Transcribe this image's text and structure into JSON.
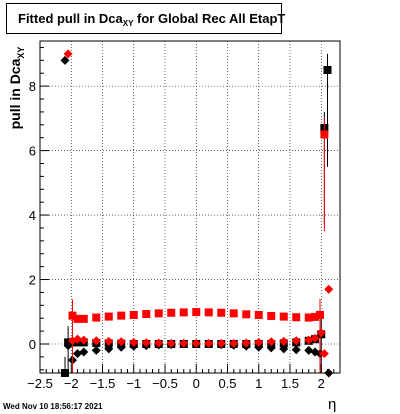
{
  "title": {
    "prefix": "Fitted pull in Dca",
    "subscript": "XY",
    "suffix": " for Global Rec All EtapT"
  },
  "ylabel": {
    "prefix": "pull in Dca",
    "subscript": "XY"
  },
  "xlabel": "η",
  "datestamp": "Wed Nov 10 18:56:17 2021",
  "colors": {
    "series_black": "#000000",
    "series_red": "#ff0000"
  },
  "chart_data": {
    "type": "scatter",
    "xlim": [
      -2.5,
      2.3
    ],
    "ylim": [
      -0.9,
      9.4
    ],
    "grid": true,
    "xticks": [
      -2.5,
      -2,
      -1.5,
      -1,
      -0.5,
      0,
      0.5,
      1,
      1.5,
      2
    ],
    "xtick_labels": [
      "−2.5",
      "−2",
      "−1.5",
      "−1",
      "−0.5",
      "0",
      "0.5",
      "1",
      "1.5",
      "2"
    ],
    "yticks": [
      0,
      2,
      4,
      6,
      8
    ],
    "ytick_labels": [
      "0",
      "2",
      "4",
      "6",
      "8"
    ],
    "series": [
      {
        "color": "#000000",
        "mean": {
          "x": [
            -2.1,
            -2.05,
            -1.98,
            -1.9,
            -1.8,
            -1.6,
            -1.4,
            -1.2,
            -1.0,
            -0.8,
            -0.6,
            -0.4,
            -0.2,
            0.0,
            0.2,
            0.4,
            0.6,
            0.8,
            1.0,
            1.2,
            1.4,
            1.6,
            1.8,
            1.9,
            1.98
          ],
          "y": [
            8.8,
            -0.05,
            -0.5,
            -0.3,
            -0.25,
            -0.2,
            -0.15,
            -0.1,
            -0.07,
            -0.05,
            -0.03,
            -0.02,
            0.0,
            0.0,
            0.0,
            -0.02,
            -0.04,
            -0.07,
            -0.1,
            -0.12,
            -0.15,
            -0.18,
            -0.2,
            -0.25,
            -0.3
          ]
        },
        "sigma": {
          "x": [
            -2.1,
            -2.05,
            -1.98,
            -1.9,
            -1.8,
            -1.6,
            -1.4,
            -1.2,
            -1.0,
            -0.8,
            -0.6,
            -0.4,
            -0.2,
            0.0,
            0.2,
            0.4,
            0.6,
            0.8,
            1.0,
            1.2,
            1.4,
            1.6,
            1.8,
            1.9,
            2.0,
            2.05,
            2.1
          ],
          "y": [
            -0.9,
            0.05,
            0.05,
            0.05,
            0.05,
            0.03,
            0.02,
            0.01,
            0.0,
            0.0,
            0.0,
            0.0,
            0.0,
            0.0,
            0.0,
            0.0,
            0.0,
            0.0,
            0.0,
            0.0,
            0.02,
            0.05,
            0.1,
            0.15,
            0.3,
            6.7,
            8.5
          ]
        },
        "edge_points": {
          "x": [
            2.12
          ],
          "y": [
            -0.9
          ]
        }
      },
      {
        "color": "#ff0000",
        "mean": {
          "x": [
            -2.05,
            -1.98,
            -1.9,
            -1.8,
            -1.6,
            -1.4,
            -1.2,
            -1.0,
            -0.8,
            -0.6,
            -0.4,
            -0.2,
            0.0,
            0.2,
            0.4,
            0.6,
            0.8,
            1.0,
            1.2,
            1.4,
            1.6,
            1.8,
            1.9,
            2.0,
            2.05,
            2.12
          ],
          "y": [
            9.0,
            0.1,
            0.15,
            0.12,
            0.1,
            0.08,
            0.07,
            0.05,
            0.04,
            0.03,
            0.02,
            0.02,
            0.02,
            0.02,
            0.02,
            0.02,
            0.03,
            0.05,
            0.07,
            0.08,
            0.1,
            0.12,
            0.18,
            0.35,
            -0.3,
            1.7
          ]
        },
        "sigma": {
          "x": [
            -1.98,
            -1.9,
            -1.8,
            -1.6,
            -1.4,
            -1.2,
            -1.0,
            -0.8,
            -0.6,
            -0.4,
            -0.2,
            0.0,
            0.2,
            0.4,
            0.6,
            0.8,
            1.0,
            1.2,
            1.4,
            1.6,
            1.8,
            1.9,
            1.98,
            2.05
          ],
          "y": [
            0.88,
            0.78,
            0.78,
            0.82,
            0.85,
            0.88,
            0.9,
            0.93,
            0.95,
            0.97,
            0.98,
            0.99,
            0.98,
            0.97,
            0.95,
            0.92,
            0.9,
            0.87,
            0.85,
            0.83,
            0.82,
            0.84,
            0.9,
            6.5
          ]
        }
      }
    ]
  }
}
